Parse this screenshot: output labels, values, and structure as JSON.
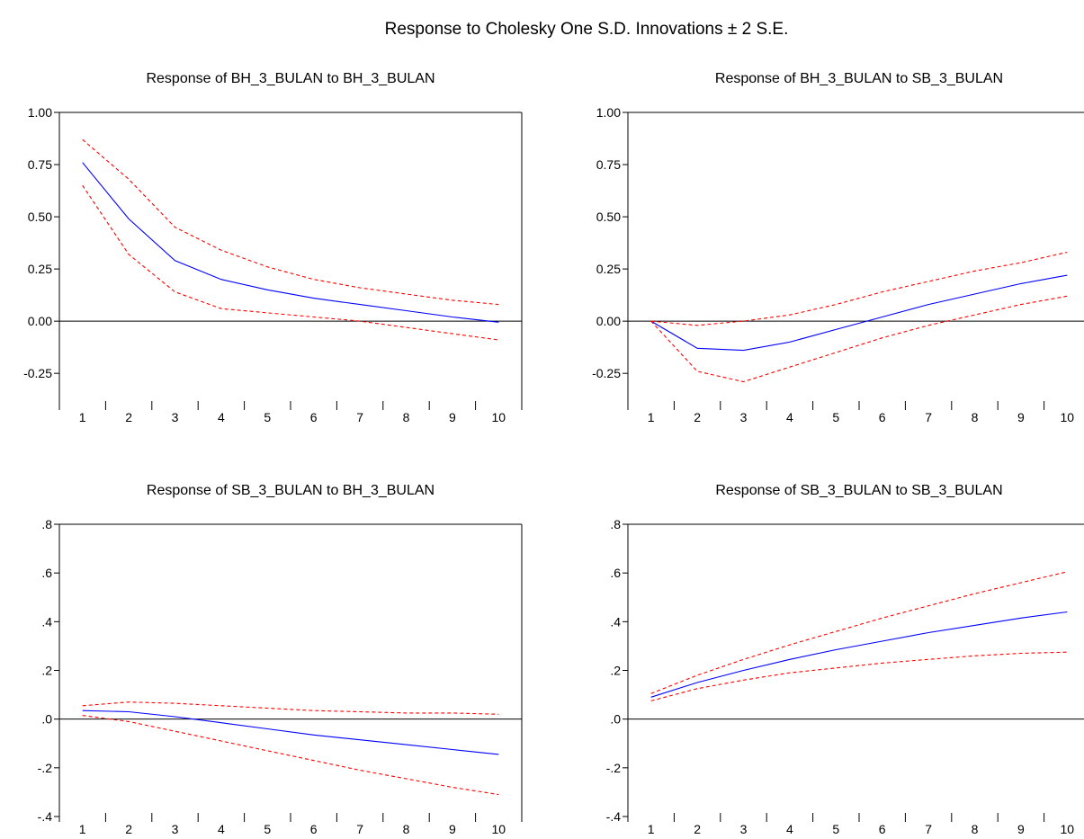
{
  "title": "Response to Cholesky One S.D. Innovations ± 2 S.E.",
  "colors": {
    "response": "#0000ff",
    "bands": "#ff0000",
    "zero_line": "#000000",
    "frame": "#000000"
  },
  "chart_data": [
    {
      "type": "line",
      "title": "Response of BH_3_BULAN to BH_3_BULAN",
      "x": [
        1,
        2,
        3,
        4,
        5,
        6,
        7,
        8,
        9,
        10
      ],
      "ylim": [
        -0.4,
        1.0
      ],
      "yticks": [
        1.0,
        0.75,
        0.5,
        0.25,
        0.0,
        -0.25
      ],
      "ytick_labels": [
        "1.00",
        "0.75",
        "0.50",
        "0.25",
        "0.00",
        "-0.25"
      ],
      "series": [
        {
          "role": "response",
          "values": [
            0.76,
            0.49,
            0.29,
            0.2,
            0.15,
            0.11,
            0.08,
            0.05,
            0.02,
            -0.005
          ]
        },
        {
          "role": "upper",
          "values": [
            0.87,
            0.68,
            0.45,
            0.34,
            0.26,
            0.2,
            0.16,
            0.13,
            0.1,
            0.08
          ]
        },
        {
          "role": "lower",
          "values": [
            0.65,
            0.32,
            0.14,
            0.06,
            0.04,
            0.02,
            0.0,
            -0.03,
            -0.06,
            -0.09
          ]
        }
      ]
    },
    {
      "type": "line",
      "title": "Response of BH_3_BULAN to SB_3_BULAN",
      "x": [
        1,
        2,
        3,
        4,
        5,
        6,
        7,
        8,
        9,
        10
      ],
      "ylim": [
        -0.4,
        1.0
      ],
      "yticks": [
        1.0,
        0.75,
        0.5,
        0.25,
        0.0,
        -0.25
      ],
      "ytick_labels": [
        "1.00",
        "0.75",
        "0.50",
        "0.25",
        "0.00",
        "-0.25"
      ],
      "series": [
        {
          "role": "response",
          "values": [
            0.0,
            -0.13,
            -0.14,
            -0.1,
            -0.04,
            0.02,
            0.08,
            0.13,
            0.18,
            0.22
          ]
        },
        {
          "role": "upper",
          "values": [
            0.0,
            -0.02,
            0.0,
            0.03,
            0.08,
            0.14,
            0.19,
            0.24,
            0.28,
            0.33
          ]
        },
        {
          "role": "lower",
          "values": [
            0.0,
            -0.24,
            -0.29,
            -0.22,
            -0.15,
            -0.08,
            -0.02,
            0.03,
            0.08,
            0.12
          ]
        }
      ]
    },
    {
      "type": "line",
      "title": "Response of SB_3_BULAN to BH_3_BULAN",
      "x": [
        1,
        2,
        3,
        4,
        5,
        6,
        7,
        8,
        9,
        10
      ],
      "ylim": [
        -0.4,
        0.8
      ],
      "yticks": [
        0.8,
        0.6,
        0.4,
        0.2,
        0.0,
        -0.2,
        -0.4
      ],
      "ytick_labels": [
        ".8",
        ".6",
        ".4",
        ".2",
        ".0",
        "-.2",
        "-.4"
      ],
      "series": [
        {
          "role": "response",
          "values": [
            0.035,
            0.03,
            0.01,
            -0.015,
            -0.04,
            -0.065,
            -0.085,
            -0.105,
            -0.125,
            -0.145
          ]
        },
        {
          "role": "upper",
          "values": [
            0.055,
            0.07,
            0.065,
            0.055,
            0.045,
            0.035,
            0.03,
            0.025,
            0.025,
            0.02
          ]
        },
        {
          "role": "lower",
          "values": [
            0.015,
            -0.01,
            -0.05,
            -0.09,
            -0.13,
            -0.17,
            -0.21,
            -0.245,
            -0.28,
            -0.31
          ]
        }
      ]
    },
    {
      "type": "line",
      "title": "Response of SB_3_BULAN to SB_3_BULAN",
      "x": [
        1,
        2,
        3,
        4,
        5,
        6,
        7,
        8,
        9,
        10
      ],
      "ylim": [
        -0.4,
        0.8
      ],
      "yticks": [
        0.8,
        0.6,
        0.4,
        0.2,
        0.0,
        -0.2,
        -0.4
      ],
      "ytick_labels": [
        ".8",
        ".6",
        ".4",
        ".2",
        ".0",
        "-.2",
        "-.4"
      ],
      "series": [
        {
          "role": "response",
          "values": [
            0.09,
            0.15,
            0.2,
            0.245,
            0.285,
            0.32,
            0.355,
            0.385,
            0.415,
            0.44
          ]
        },
        {
          "role": "upper",
          "values": [
            0.105,
            0.18,
            0.245,
            0.305,
            0.36,
            0.415,
            0.465,
            0.515,
            0.56,
            0.605
          ]
        },
        {
          "role": "lower",
          "values": [
            0.075,
            0.125,
            0.16,
            0.19,
            0.21,
            0.23,
            0.245,
            0.26,
            0.27,
            0.275
          ]
        }
      ]
    }
  ]
}
